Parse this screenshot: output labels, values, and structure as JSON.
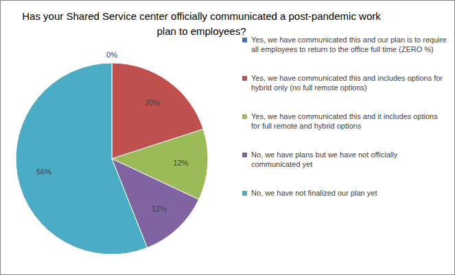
{
  "chart_data": {
    "type": "pie",
    "title": "Has your Shared Service center officially communicated a post-pandemic work plan to employees?",
    "categories": [
      "Yes, we have communicated this and our plan is to require all employees to return to the office full time (ZERO %)",
      "Yes, we have communicated this and includes options for hybrid only (no full remote options)",
      "Yes, we have communicated this and it includes options for full remote and hybrid options",
      "No, we have plans but we have not officially communicated yet",
      "No, we have not finalized our plan yet"
    ],
    "values": [
      0,
      20,
      12,
      12,
      56
    ],
    "value_labels": [
      "0%",
      "20%",
      "12%",
      "12%",
      "56%"
    ],
    "colors": [
      "#4472c4",
      "#c0504d",
      "#9bbb59",
      "#8064a2",
      "#4bacc6"
    ],
    "data_labels": true,
    "legend": "right"
  }
}
